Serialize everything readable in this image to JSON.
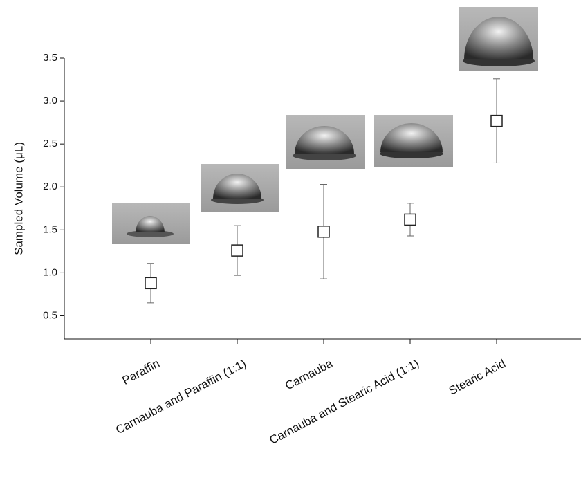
{
  "chart_data": {
    "type": "errorbar",
    "ylabel": "Sampled Volume (μL)",
    "categories": [
      "Paraffin",
      "Carnauba and Paraffin (1:1)",
      "Carnauba",
      "Carnauba and Stearic Acid (1:1)",
      "Stearic Acid"
    ],
    "values": [
      0.88,
      1.26,
      1.48,
      1.62,
      2.77
    ],
    "errors": [
      0.23,
      0.29,
      0.55,
      0.19,
      0.49
    ],
    "color": "#222222",
    "ylim": [
      0.23,
      3.5
    ],
    "yticks": [
      0.5,
      {
        "value": 1.0,
        "label": "1.0"
      },
      1.5,
      {
        "value": 2.0,
        "label": "2.0"
      },
      2.5,
      {
        "value": 3.0,
        "label": "3.0"
      },
      3.5
    ]
  }
}
